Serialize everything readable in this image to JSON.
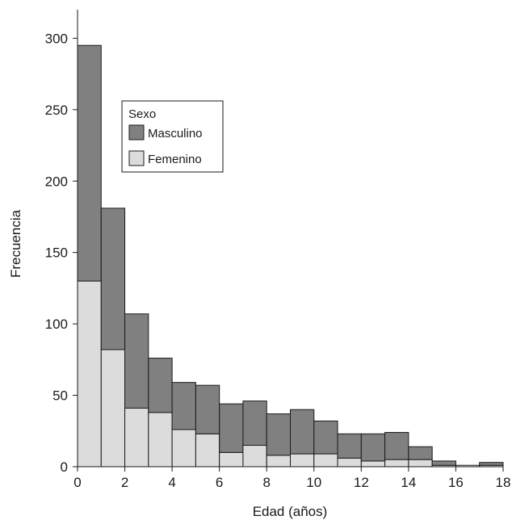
{
  "chart_data": {
    "type": "bar",
    "stacked": true,
    "x_bin_edges": [
      0,
      1,
      2,
      3,
      4,
      5,
      6,
      7,
      8,
      9,
      10,
      11,
      12,
      13,
      14,
      15,
      16,
      17,
      18
    ],
    "series": [
      {
        "name": "Femenino",
        "color": "#dcdcdc",
        "values": [
          130,
          82,
          41,
          38,
          26,
          23,
          10,
          15,
          8,
          9,
          9,
          6,
          4,
          5,
          5,
          1,
          1,
          1
        ]
      },
      {
        "name": "Masculino",
        "color": "#808080",
        "values": [
          165,
          99,
          66,
          38,
          33,
          34,
          34,
          31,
          29,
          31,
          23,
          17,
          19,
          19,
          9,
          3,
          0,
          2
        ]
      }
    ],
    "xlabel": "Edad (años)",
    "ylabel": "Frecuencia",
    "xlim": [
      0,
      18
    ],
    "ylim": [
      0,
      320
    ],
    "x_ticks": [
      "0",
      "2",
      "4",
      "6",
      "8",
      "10",
      "12",
      "14",
      "16",
      "18"
    ],
    "y_ticks": [
      "0",
      "50",
      "100",
      "150",
      "200",
      "250",
      "300"
    ],
    "legend": {
      "title": "Sexo",
      "entries": [
        "Masculino",
        "Femenino"
      ],
      "placement": "top-left"
    },
    "grid": false
  }
}
